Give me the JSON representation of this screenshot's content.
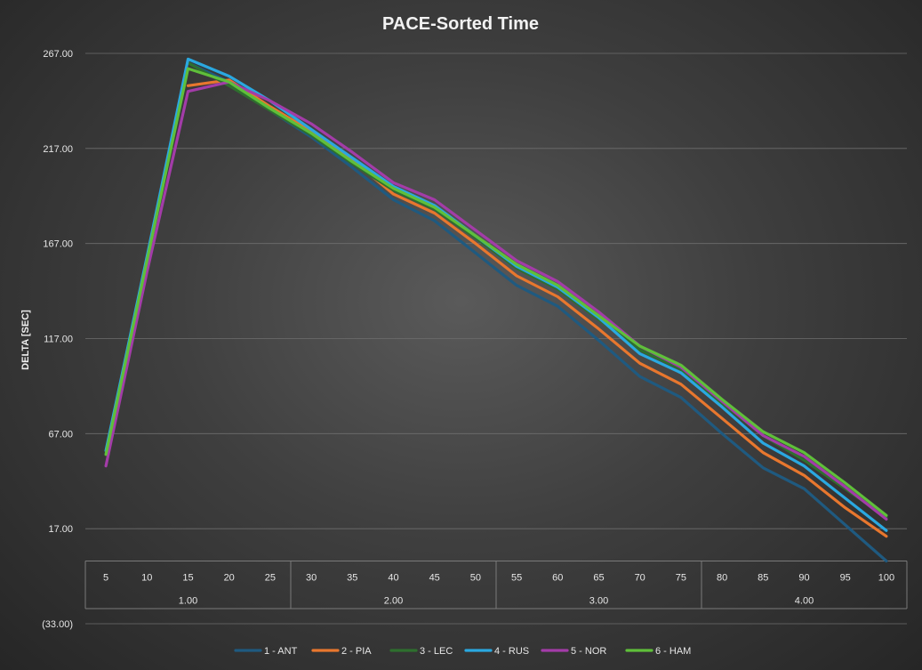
{
  "chart_data": {
    "type": "line",
    "title": "PACE-Sorted Time",
    "ylabel": "DELTA [SEC]",
    "ylim": [
      -33,
      267
    ],
    "y_ticks": [
      "267.00",
      "217.00",
      "167.00",
      "117.00",
      "67.00",
      "17.00",
      "(33.00)"
    ],
    "y_tick_values": [
      267,
      217,
      167,
      117,
      67,
      17,
      -33
    ],
    "x": [
      5,
      10,
      15,
      20,
      25,
      30,
      35,
      40,
      45,
      50,
      55,
      60,
      65,
      70,
      75,
      80,
      85,
      90,
      95,
      100
    ],
    "x_labels": [
      "5",
      "10",
      "15",
      "20",
      "25",
      "30",
      "35",
      "40",
      "45",
      "50",
      "55",
      "60",
      "65",
      "70",
      "75",
      "80",
      "85",
      "90",
      "95",
      "100"
    ],
    "groups": [
      {
        "label": "1.00",
        "start": 5,
        "end": 25
      },
      {
        "label": "2.00",
        "start": 30,
        "end": 50
      },
      {
        "label": "3.00",
        "start": 55,
        "end": 75
      },
      {
        "label": "4.00",
        "start": 80,
        "end": 100
      }
    ],
    "grid": true,
    "legend_position": "bottom",
    "series": [
      {
        "name": "1 - ANT",
        "color": "#1f5a80",
        "values": [
          null,
          null,
          262,
          252,
          237,
          223,
          207,
          190,
          179,
          162,
          145,
          134,
          116,
          97,
          86,
          67,
          49,
          38,
          19,
          0
        ]
      },
      {
        "name": "2 - PIA",
        "color": "#e8772e",
        "values": [
          null,
          null,
          250,
          253,
          239,
          226,
          211,
          193,
          183,
          167,
          150,
          139,
          122,
          104,
          93,
          75,
          57,
          45,
          28,
          13
        ]
      },
      {
        "name": "3 - LEC",
        "color": "#2e6f2e",
        "values": [
          null,
          null,
          262,
          250,
          237,
          224,
          209,
          195,
          185,
          170,
          154,
          143,
          127,
          111,
          101,
          83,
          66,
          53,
          38,
          23
        ]
      },
      {
        "name": "4 - RUS",
        "color": "#2aa8e0",
        "values": [
          58,
          160,
          264,
          255,
          242,
          227,
          212,
          197,
          187,
          171,
          155,
          144,
          128,
          109,
          99,
          81,
          62,
          50,
          33,
          16
        ]
      },
      {
        "name": "5 - NOR",
        "color": "#a33ca8",
        "values": [
          50,
          152,
          247,
          252,
          242,
          230,
          215,
          199,
          190,
          174,
          158,
          147,
          131,
          113,
          102,
          84,
          66,
          55,
          39,
          22
        ]
      },
      {
        "name": "6 - HAM",
        "color": "#5fbf3a",
        "values": [
          56,
          158,
          259,
          252,
          238,
          225,
          210,
          196,
          186,
          171,
          156,
          145,
          129,
          113,
          103,
          85,
          68,
          57,
          41,
          24
        ]
      }
    ]
  }
}
